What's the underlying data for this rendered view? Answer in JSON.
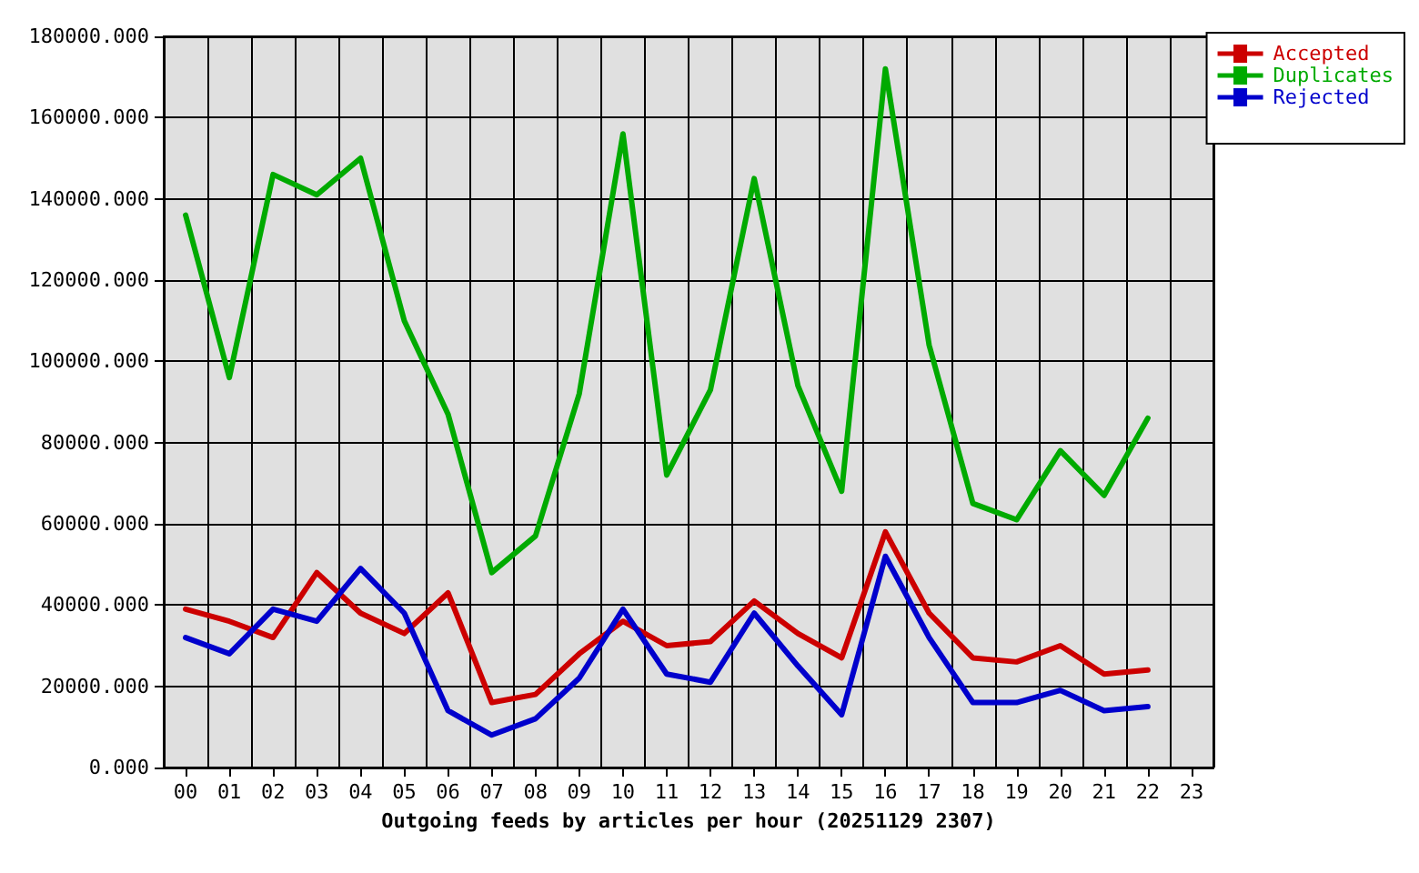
{
  "chart_data": {
    "type": "line",
    "xlabel": "Outgoing feeds by articles per hour (20251129 2307)",
    "categories": [
      "00",
      "01",
      "02",
      "03",
      "04",
      "05",
      "06",
      "07",
      "08",
      "09",
      "10",
      "11",
      "12",
      "13",
      "14",
      "15",
      "16",
      "17",
      "18",
      "19",
      "20",
      "21",
      "22",
      "23"
    ],
    "series": [
      {
        "name": "Accepted",
        "color": "#cc0000",
        "values": [
          39000,
          36000,
          32000,
          48000,
          38000,
          33000,
          43000,
          16000,
          18000,
          28000,
          36000,
          30000,
          31000,
          41000,
          33000,
          27000,
          58000,
          38000,
          27000,
          26000,
          30000,
          23000,
          24000,
          null
        ]
      },
      {
        "name": "Duplicates",
        "color": "#00aa00",
        "values": [
          136000,
          96000,
          146000,
          141000,
          150000,
          110000,
          87000,
          48000,
          57000,
          92000,
          156000,
          72000,
          93000,
          145000,
          94000,
          68000,
          172000,
          104000,
          65000,
          61000,
          78000,
          67000,
          86000,
          null
        ]
      },
      {
        "name": "Rejected",
        "color": "#0000cc",
        "values": [
          32000,
          28000,
          39000,
          36000,
          49000,
          38000,
          14000,
          8000,
          12000,
          22000,
          39000,
          23000,
          21000,
          38000,
          25000,
          13000,
          52000,
          32000,
          16000,
          16000,
          19000,
          14000,
          15000,
          null
        ]
      }
    ],
    "ylim": [
      0,
      180000
    ],
    "yticks": [
      {
        "value": 0,
        "label": "0.000"
      },
      {
        "value": 20000,
        "label": "20000.000"
      },
      {
        "value": 40000,
        "label": "40000.000"
      },
      {
        "value": 60000,
        "label": "60000.000"
      },
      {
        "value": 80000,
        "label": "80000.000"
      },
      {
        "value": 100000,
        "label": "100000.000"
      },
      {
        "value": 120000,
        "label": "120000.000"
      },
      {
        "value": 140000,
        "label": "140000.000"
      },
      {
        "value": 160000,
        "label": "160000.000"
      },
      {
        "value": 180000,
        "label": "180000.000"
      }
    ],
    "grid": true,
    "legend": "top right",
    "marker": "none",
    "line_style": "solid"
  }
}
